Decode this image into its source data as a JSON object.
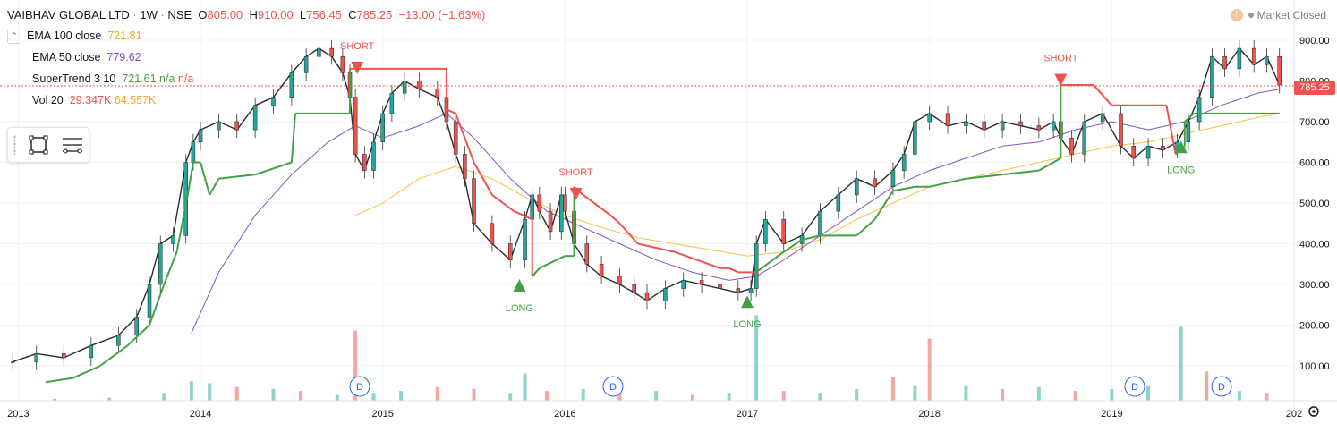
{
  "header": {
    "symbol": "VAIBHAV GLOBAL LTD",
    "interval": "1W",
    "exchange": "NSE",
    "open_label": "O",
    "open": "805.00",
    "high_label": "H",
    "high": "910.00",
    "low_label": "L",
    "low": "756.45",
    "close_label": "C",
    "close": "785.25",
    "change": "−13.00 (−1.63%)"
  },
  "status": {
    "market": "Market Closed"
  },
  "indicators": {
    "ema100": {
      "label": "EMA 100 close",
      "value": "721.81"
    },
    "ema50": {
      "label": "EMA 50 close",
      "value": "779.62"
    },
    "supertrend": {
      "label": "SuperTrend 3 10",
      "value": "721.61",
      "v2": "n/a",
      "v3": "n/a"
    },
    "vol": {
      "label": "Vol 20",
      "value": "29.347K",
      "value2": "64.557K"
    }
  },
  "price_tag": "785.25",
  "colors": {
    "up": "#26a69a",
    "down": "#ef5350",
    "ema100": "#f5c242",
    "ema50": "#7e57c2",
    "st_up": "#43a047",
    "st_down": "#ef5350",
    "grid": "#f0f3fa",
    "axis_text": "#131722"
  },
  "icons": [
    "chevron-down-icon",
    "rectangle-tool-icon",
    "lines-tool-icon",
    "alert-icon",
    "settings-icon"
  ],
  "chart_data": {
    "type": "line",
    "ylim": [
      20,
      950
    ],
    "xlim": [
      2012.9,
      2020.0
    ],
    "y_ticks": [
      "900.00",
      "800.00",
      "700.00",
      "600.00",
      "500.00",
      "400.00",
      "300.00",
      "200.00",
      "100.00"
    ],
    "x_ticks": [
      "2013",
      "2014",
      "2015",
      "2016",
      "2017",
      "2018",
      "2019",
      "202"
    ],
    "price": {
      "x": [
        2012.97,
        2013.1,
        2013.25,
        2013.4,
        2013.55,
        2013.65,
        2013.72,
        2013.78,
        2013.85,
        2013.92,
        2013.96,
        2014.0,
        2014.1,
        2014.2,
        2014.3,
        2014.4,
        2014.5,
        2014.58,
        2014.65,
        2014.72,
        2014.78,
        2014.82,
        2014.85,
        2014.9,
        2014.95,
        2015.0,
        2015.05,
        2015.12,
        2015.2,
        2015.3,
        2015.35,
        2015.4,
        2015.45,
        2015.5,
        2015.6,
        2015.7,
        2015.78,
        2015.82,
        2015.86,
        2015.92,
        2015.98,
        2016.0,
        2016.05,
        2016.12,
        2016.2,
        2016.3,
        2016.38,
        2016.45,
        2016.55,
        2016.65,
        2016.75,
        2016.85,
        2016.95,
        2017.02,
        2017.05,
        2017.1,
        2017.2,
        2017.3,
        2017.4,
        2017.5,
        2017.6,
        2017.7,
        2017.8,
        2017.86,
        2017.92,
        2018.0,
        2018.1,
        2018.2,
        2018.3,
        2018.4,
        2018.5,
        2018.6,
        2018.68,
        2018.72,
        2018.78,
        2018.85,
        2018.95,
        2019.05,
        2019.12,
        2019.2,
        2019.28,
        2019.36,
        2019.42,
        2019.48,
        2019.55,
        2019.62,
        2019.7,
        2019.78,
        2019.85,
        2019.92
      ],
      "y": [
        110,
        130,
        120,
        150,
        175,
        220,
        300,
        400,
        420,
        600,
        650,
        680,
        700,
        680,
        740,
        760,
        820,
        860,
        880,
        860,
        820,
        760,
        620,
        580,
        650,
        720,
        770,
        800,
        780,
        760,
        700,
        620,
        560,
        450,
        400,
        360,
        460,
        520,
        480,
        430,
        520,
        480,
        400,
        350,
        320,
        300,
        280,
        260,
        290,
        310,
        300,
        290,
        280,
        290,
        400,
        460,
        400,
        420,
        480,
        520,
        560,
        540,
        580,
        620,
        700,
        720,
        690,
        700,
        680,
        700,
        690,
        680,
        700,
        660,
        620,
        700,
        720,
        640,
        610,
        640,
        630,
        650,
        700,
        760,
        860,
        830,
        880,
        840,
        860,
        790
      ]
    },
    "ema50": {
      "x": [
        2013.95,
        2014.1,
        2014.3,
        2014.5,
        2014.7,
        2014.85,
        2015.0,
        2015.2,
        2015.35,
        2015.5,
        2015.7,
        2015.9,
        2016.1,
        2016.3,
        2016.5,
        2016.7,
        2016.9,
        2017.05,
        2017.2,
        2017.4,
        2017.6,
        2017.8,
        2018.0,
        2018.2,
        2018.4,
        2018.6,
        2018.8,
        2019.0,
        2019.2,
        2019.4,
        2019.6,
        2019.8,
        2019.92
      ],
      "y": [
        180,
        330,
        470,
        570,
        650,
        690,
        660,
        690,
        720,
        660,
        560,
        480,
        440,
        400,
        360,
        330,
        310,
        320,
        360,
        420,
        480,
        540,
        580,
        610,
        640,
        650,
        680,
        700,
        680,
        700,
        740,
        770,
        780
      ]
    },
    "ema100": {
      "x": [
        2014.85,
        2015.0,
        2015.2,
        2015.4,
        2015.6,
        2015.8,
        2016.0,
        2016.2,
        2016.4,
        2016.6,
        2016.8,
        2017.0,
        2017.2,
        2017.4,
        2017.6,
        2017.8,
        2018.0,
        2018.2,
        2018.4,
        2018.6,
        2018.8,
        2019.0,
        2019.2,
        2019.4,
        2019.6,
        2019.8,
        2019.92
      ],
      "y": [
        470,
        500,
        560,
        590,
        560,
        510,
        470,
        440,
        415,
        400,
        385,
        370,
        380,
        410,
        460,
        500,
        540,
        560,
        580,
        600,
        620,
        640,
        650,
        670,
        690,
        710,
        720
      ]
    },
    "supertrend": {
      "x": [
        2013.15,
        2013.3,
        2013.45,
        2013.6,
        2013.72,
        2013.8,
        2013.87,
        2013.93,
        2013.96,
        2014.0,
        2014.05,
        2014.1,
        2014.3,
        2014.5,
        2014.52,
        2014.68,
        2014.82,
        2014.82,
        2014.86,
        2014.86,
        2015.0,
        2015.35,
        2015.35,
        2015.4,
        2015.5,
        2015.6,
        2015.72,
        2015.82,
        2015.82,
        2015.86,
        2016.0,
        2016.05,
        2016.05,
        2016.1,
        2016.25,
        2016.3,
        2016.4,
        2016.6,
        2016.85,
        2016.9,
        2016.95,
        2017.05,
        2017.05,
        2017.2,
        2017.3,
        2017.4,
        2017.6,
        2017.7,
        2017.8,
        2017.92,
        2018.0,
        2018.2,
        2018.4,
        2018.6,
        2018.72,
        2018.72,
        2018.75,
        2018.9,
        2018.96,
        2019.0,
        2019.3,
        2019.35,
        2019.4,
        2019.4,
        2019.45,
        2019.55,
        2019.7,
        2019.92
      ],
      "y": [
        60,
        70,
        100,
        150,
        200,
        300,
        380,
        520,
        600,
        600,
        520,
        560,
        570,
        600,
        720,
        720,
        720,
        830,
        830,
        830,
        830,
        830,
        730,
        720,
        600,
        520,
        480,
        460,
        320,
        340,
        370,
        370,
        540,
        520,
        470,
        450,
        400,
        380,
        340,
        340,
        330,
        330,
        330,
        380,
        410,
        420,
        420,
        460,
        530,
        540,
        540,
        560,
        570,
        580,
        610,
        790,
        790,
        790,
        760,
        740,
        740,
        620,
        640,
        700,
        720,
        720,
        720,
        720
      ],
      "trend_up": [
        true,
        true,
        true,
        true,
        true,
        true,
        true,
        true,
        true,
        true,
        true,
        true,
        true,
        true,
        true,
        true,
        true,
        false,
        false,
        false,
        false,
        false,
        false,
        false,
        false,
        false,
        false,
        false,
        true,
        true,
        true,
        true,
        false,
        false,
        false,
        false,
        false,
        false,
        false,
        false,
        false,
        false,
        true,
        true,
        true,
        true,
        true,
        true,
        true,
        true,
        true,
        true,
        true,
        true,
        true,
        false,
        false,
        false,
        false,
        false,
        false,
        true,
        true,
        true,
        true,
        true,
        true,
        true
      ]
    },
    "signals": [
      {
        "label": "SHORT",
        "x": 2014.86,
        "y": 830,
        "type": "short"
      },
      {
        "label": "LONG",
        "x": 2015.75,
        "y": 300,
        "type": "long"
      },
      {
        "label": "SHORT",
        "x": 2016.06,
        "y": 520,
        "type": "short"
      },
      {
        "label": "LONG",
        "x": 2017.0,
        "y": 260,
        "type": "long"
      },
      {
        "label": "SHORT",
        "x": 2018.72,
        "y": 800,
        "type": "short"
      },
      {
        "label": "LONG",
        "x": 2019.38,
        "y": 640,
        "type": "long"
      }
    ],
    "volume": {
      "x": [
        2013.2,
        2013.5,
        2013.8,
        2013.95,
        2014.05,
        2014.2,
        2014.4,
        2014.55,
        2014.75,
        2014.85,
        2014.95,
        2015.1,
        2015.3,
        2015.5,
        2015.7,
        2015.78,
        2015.9,
        2016.1,
        2016.3,
        2016.5,
        2016.7,
        2016.9,
        2017.05,
        2017.2,
        2017.4,
        2017.6,
        2017.8,
        2017.92,
        2018.0,
        2018.2,
        2018.4,
        2018.6,
        2018.8,
        2019.0,
        2019.2,
        2019.38,
        2019.52,
        2019.7,
        2019.85
      ],
      "v": [
        5,
        8,
        20,
        50,
        45,
        35,
        30,
        25,
        15,
        180,
        20,
        25,
        35,
        30,
        20,
        70,
        25,
        30,
        20,
        25,
        15,
        20,
        220,
        25,
        20,
        30,
        60,
        40,
        160,
        40,
        30,
        35,
        25,
        30,
        40,
        190,
        75,
        25,
        20
      ],
      "up": [
        true,
        true,
        true,
        true,
        true,
        false,
        true,
        false,
        true,
        false,
        true,
        true,
        false,
        false,
        true,
        true,
        false,
        true,
        false,
        true,
        false,
        true,
        true,
        false,
        true,
        true,
        false,
        true,
        false,
        true,
        false,
        true,
        false,
        true,
        true,
        true,
        false,
        true,
        false
      ]
    }
  }
}
